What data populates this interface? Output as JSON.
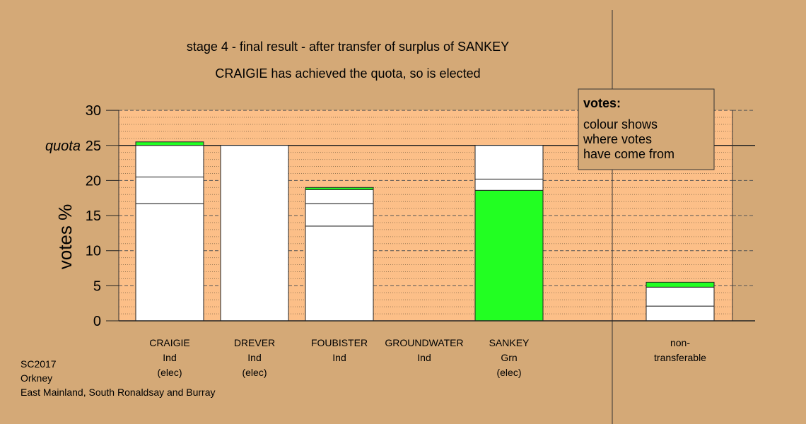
{
  "chart_data": {
    "type": "bar",
    "stacked": true,
    "title": "stage 4 - final result - after transfer of surplus of SANKEY",
    "subtitle": "CRAIGIE has achieved the quota, so is elected",
    "ylabel": "votes %",
    "ylim": [
      0,
      30
    ],
    "yticks": [
      0,
      5,
      10,
      15,
      20,
      25,
      30
    ],
    "quota": 25,
    "quota_label": "quota",
    "grid": true,
    "colors": {
      "background": "#d4a977",
      "plot": "#fcbf88",
      "transfer": "#22ff22",
      "bar": "#ffffff"
    },
    "categories": [
      {
        "name": "CRAIGIE",
        "party": "Ind",
        "status": "(elec)",
        "segments": [
          {
            "value": 16.7,
            "color": "#ffffff"
          },
          {
            "value": 3.8,
            "color": "#ffffff"
          },
          {
            "value": 4.5,
            "color": "#ffffff"
          },
          {
            "value": 0.5,
            "color": "#22ff22"
          }
        ]
      },
      {
        "name": "DREVER",
        "party": "Ind",
        "status": "(elec)",
        "segments": [
          {
            "value": 25.0,
            "color": "#ffffff"
          }
        ]
      },
      {
        "name": "FOUBISTER",
        "party": "Ind",
        "status": "",
        "segments": [
          {
            "value": 13.5,
            "color": "#ffffff"
          },
          {
            "value": 3.2,
            "color": "#ffffff"
          },
          {
            "value": 2.0,
            "color": "#ffffff"
          },
          {
            "value": 0.3,
            "color": "#22ff22"
          }
        ]
      },
      {
        "name": "GROUNDWATER",
        "party": "Ind",
        "status": "",
        "segments": []
      },
      {
        "name": "SANKEY",
        "party": "Grn",
        "status": "(elec)",
        "segments": [
          {
            "value": 18.6,
            "color": "#22ff22"
          },
          {
            "value": 1.6,
            "color": "#ffffff"
          },
          {
            "value": 4.8,
            "color": "#ffffff"
          }
        ]
      }
    ],
    "nontransferable": {
      "name": "non-",
      "name2": "transferable",
      "segments": [
        {
          "value": 2.1,
          "color": "#ffffff"
        },
        {
          "value": 2.7,
          "color": "#ffffff"
        },
        {
          "value": 0.7,
          "color": "#22ff22"
        }
      ]
    },
    "legend": {
      "title": "votes:",
      "lines": [
        "colour shows",
        "where votes",
        "have come from"
      ]
    }
  },
  "footer": {
    "line1": "SC2017",
    "line2": "Orkney",
    "line3": "East Mainland, South Ronaldsay and Burray"
  }
}
